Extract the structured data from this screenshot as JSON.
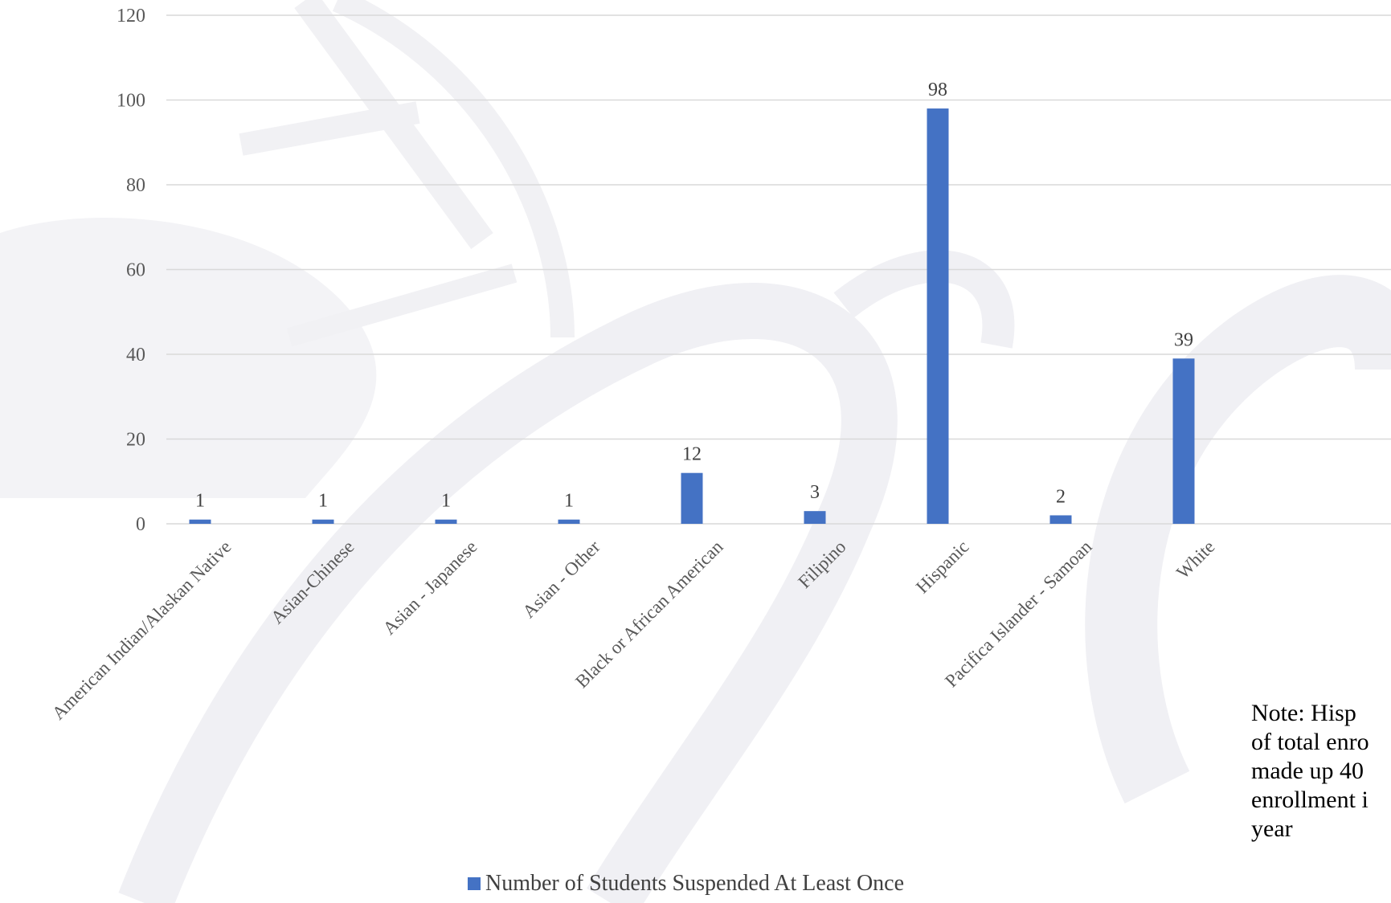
{
  "chart_data": {
    "type": "bar",
    "categories": [
      "American Indian/Alaskan Native",
      "Asian-Chinese",
      "Asian - Japanese",
      "Asian - Other",
      "Black or African American",
      "Filipino",
      "Hispanic",
      "Pacifica Islander - Samoan",
      "White"
    ],
    "series": [
      {
        "name": "Number of Students Suspended At Least Once",
        "values": [
          1,
          1,
          1,
          1,
          12,
          3,
          98,
          2,
          39
        ],
        "color": "#4472C4"
      }
    ],
    "y_ticks": [
      "0",
      "20",
      "40",
      "60",
      "80",
      "100",
      "120"
    ],
    "ylim": [
      0,
      120
    ],
    "grid": true,
    "legend": "bottom",
    "data_labels": true
  },
  "note": {
    "lines": [
      "Note:  Hisp",
      "of total enro",
      "made up 40",
      "enrollment i",
      "year"
    ]
  },
  "legend_label": "Number of Students Suspended At Least Once",
  "colors": {
    "bar": "#4472C4",
    "watermark": "#f1f1f5"
  }
}
